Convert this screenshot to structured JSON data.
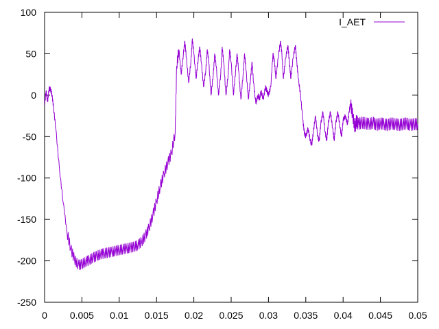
{
  "chart_data": {
    "type": "line",
    "title": "",
    "xlabel": "",
    "ylabel": "",
    "xlim": [
      0,
      0.05
    ],
    "ylim": [
      -250,
      100
    ],
    "grid": false,
    "legend_position": "top-right",
    "x_ticks": [
      0,
      0.005,
      0.01,
      0.015,
      0.02,
      0.025,
      0.03,
      0.035,
      0.04,
      0.045,
      0.05
    ],
    "x_tick_labels": [
      "0",
      "0.005",
      "0.01",
      "0.015",
      "0.02",
      "0.025",
      "0.03",
      "0.035",
      "0.04",
      "0.045",
      "0.05"
    ],
    "y_ticks": [
      100,
      50,
      0,
      -50,
      -100,
      -150,
      -200,
      -250
    ],
    "y_tick_labels": [
      "100",
      "50",
      "0",
      "-50",
      "-100",
      "-150",
      "-200",
      "-250"
    ],
    "series": [
      {
        "name": "I_AET",
        "color": "#9400d3",
        "points": [
          [
            0.0,
            -12
          ],
          [
            0.0002,
            5
          ],
          [
            0.0004,
            -8
          ],
          [
            0.0006,
            8
          ],
          [
            0.0008,
            7
          ],
          [
            0.001,
            0
          ],
          [
            0.0012,
            -15
          ],
          [
            0.0015,
            -40
          ],
          [
            0.002,
            -90
          ],
          [
            0.0025,
            -130
          ],
          [
            0.003,
            -165
          ],
          [
            0.0035,
            -185
          ],
          [
            0.004,
            -198
          ],
          [
            0.0045,
            -205
          ],
          [
            0.005,
            -204
          ],
          [
            0.0055,
            -201
          ],
          [
            0.006,
            -199
          ],
          [
            0.0065,
            -196
          ],
          [
            0.007,
            -194
          ],
          [
            0.0075,
            -192
          ],
          [
            0.008,
            -191
          ],
          [
            0.0085,
            -190
          ],
          [
            0.009,
            -189
          ],
          [
            0.0095,
            -188
          ],
          [
            0.01,
            -187
          ],
          [
            0.0105,
            -186
          ],
          [
            0.011,
            -185
          ],
          [
            0.0115,
            -184
          ],
          [
            0.012,
            -183
          ],
          [
            0.0125,
            -181
          ],
          [
            0.013,
            -177
          ],
          [
            0.0135,
            -170
          ],
          [
            0.014,
            -160
          ],
          [
            0.0145,
            -145
          ],
          [
            0.015,
            -128
          ],
          [
            0.0155,
            -110
          ],
          [
            0.016,
            -95
          ],
          [
            0.0165,
            -82
          ],
          [
            0.017,
            -70
          ],
          [
            0.0175,
            -45
          ],
          [
            0.0177,
            35
          ],
          [
            0.018,
            55
          ],
          [
            0.0183,
            25
          ],
          [
            0.0186,
            50
          ],
          [
            0.0188,
            65
          ],
          [
            0.019,
            45
          ],
          [
            0.0193,
            15
          ],
          [
            0.0196,
            40
          ],
          [
            0.0198,
            68
          ],
          [
            0.02,
            50
          ],
          [
            0.0203,
            20
          ],
          [
            0.0206,
            45
          ],
          [
            0.0208,
            58
          ],
          [
            0.021,
            40
          ],
          [
            0.0213,
            10
          ],
          [
            0.0216,
            30
          ],
          [
            0.0218,
            55
          ],
          [
            0.022,
            40
          ],
          [
            0.0223,
            0
          ],
          [
            0.0226,
            25
          ],
          [
            0.0228,
            50
          ],
          [
            0.023,
            35
          ],
          [
            0.0233,
            0
          ],
          [
            0.0236,
            25
          ],
          [
            0.0238,
            58
          ],
          [
            0.024,
            40
          ],
          [
            0.0243,
            0
          ],
          [
            0.0246,
            25
          ],
          [
            0.0248,
            55
          ],
          [
            0.025,
            40
          ],
          [
            0.0253,
            0
          ],
          [
            0.0256,
            30
          ],
          [
            0.0258,
            50
          ],
          [
            0.026,
            30
          ],
          [
            0.0263,
            -5
          ],
          [
            0.0266,
            25
          ],
          [
            0.0268,
            50
          ],
          [
            0.027,
            30
          ],
          [
            0.0273,
            -5
          ],
          [
            0.0276,
            20
          ],
          [
            0.0278,
            40
          ],
          [
            0.028,
            15
          ],
          [
            0.0283,
            -10
          ],
          [
            0.0286,
            0
          ],
          [
            0.0288,
            -5
          ],
          [
            0.029,
            5
          ],
          [
            0.0293,
            -5
          ],
          [
            0.0296,
            10
          ],
          [
            0.0298,
            5
          ],
          [
            0.03,
            0
          ],
          [
            0.0303,
            10
          ],
          [
            0.0306,
            50
          ],
          [
            0.0308,
            40
          ],
          [
            0.031,
            20
          ],
          [
            0.0313,
            45
          ],
          [
            0.0316,
            65
          ],
          [
            0.0318,
            50
          ],
          [
            0.032,
            20
          ],
          [
            0.0323,
            45
          ],
          [
            0.0326,
            60
          ],
          [
            0.0328,
            40
          ],
          [
            0.033,
            20
          ],
          [
            0.0333,
            45
          ],
          [
            0.0336,
            60
          ],
          [
            0.0338,
            40
          ],
          [
            0.034,
            20
          ],
          [
            0.0343,
            0
          ],
          [
            0.0346,
            -30
          ],
          [
            0.0348,
            -45
          ],
          [
            0.035,
            -50
          ],
          [
            0.0353,
            -40
          ],
          [
            0.0356,
            -55
          ],
          [
            0.0358,
            -60
          ],
          [
            0.036,
            -45
          ],
          [
            0.0363,
            -25
          ],
          [
            0.0366,
            -50
          ],
          [
            0.0368,
            -55
          ],
          [
            0.037,
            -35
          ],
          [
            0.0373,
            -20
          ],
          [
            0.0376,
            -45
          ],
          [
            0.0378,
            -55
          ],
          [
            0.038,
            -35
          ],
          [
            0.0383,
            -20
          ],
          [
            0.0386,
            -40
          ],
          [
            0.0388,
            -55
          ],
          [
            0.039,
            -35
          ],
          [
            0.0393,
            -20
          ],
          [
            0.0396,
            -40
          ],
          [
            0.0398,
            -50
          ],
          [
            0.04,
            -30
          ],
          [
            0.0403,
            -25
          ],
          [
            0.0406,
            -35
          ],
          [
            0.0408,
            -20
          ],
          [
            0.041,
            -10
          ],
          [
            0.0413,
            -25
          ],
          [
            0.0416,
            -40
          ],
          [
            0.0418,
            -30
          ],
          [
            0.042,
            -35
          ],
          [
            0.0425,
            -33
          ],
          [
            0.043,
            -34
          ],
          [
            0.0435,
            -35
          ],
          [
            0.044,
            -33
          ],
          [
            0.0445,
            -36
          ],
          [
            0.045,
            -34
          ],
          [
            0.0455,
            -35
          ],
          [
            0.046,
            -36
          ],
          [
            0.0465,
            -34
          ],
          [
            0.047,
            -35
          ],
          [
            0.0475,
            -36
          ],
          [
            0.048,
            -35
          ],
          [
            0.0485,
            -34
          ],
          [
            0.049,
            -36
          ],
          [
            0.0495,
            -35
          ],
          [
            0.05,
            -35
          ]
        ]
      }
    ]
  }
}
